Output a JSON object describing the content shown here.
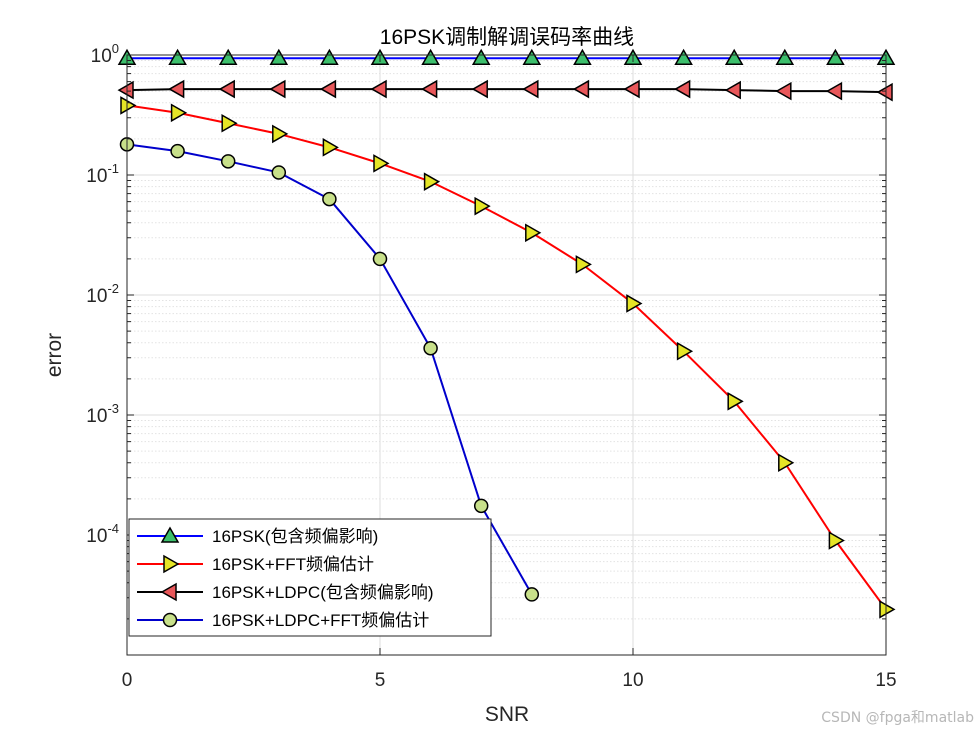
{
  "chart_data": {
    "type": "line",
    "title": "16PSK调制解调误码率曲线",
    "xlabel": "SNR",
    "ylabel": "error",
    "yscale": "log",
    "xlim": [
      0,
      15
    ],
    "ylim": [
      1e-05,
      1
    ],
    "xticks": [
      0,
      5,
      10,
      15
    ],
    "yticks": [
      {
        "value": 1,
        "base": "10",
        "exp": "0"
      },
      {
        "value": 0.1,
        "base": "10",
        "exp": "-1"
      },
      {
        "value": 0.01,
        "base": "10",
        "exp": "-2"
      },
      {
        "value": 0.001,
        "base": "10",
        "exp": "-3"
      },
      {
        "value": 0.0001,
        "base": "10",
        "exp": "-4"
      }
    ],
    "grid": true,
    "legend_position": "bottom-left",
    "series": [
      {
        "name": "16PSK(包含频偏影响)",
        "color": "#0000ff",
        "marker": "triangle-up",
        "marker_color": "#3cbf6c",
        "x": [
          0,
          1,
          2,
          3,
          4,
          5,
          6,
          7,
          8,
          9,
          10,
          11,
          12,
          13,
          14,
          15
        ],
        "values": [
          0.94,
          0.94,
          0.94,
          0.94,
          0.94,
          0.94,
          0.94,
          0.94,
          0.94,
          0.94,
          0.94,
          0.94,
          0.94,
          0.94,
          0.94,
          0.94
        ]
      },
      {
        "name": "16PSK+FFT频偏估计",
        "color": "#ff0000",
        "marker": "triangle-right",
        "marker_color": "#e5e526",
        "x": [
          0,
          1,
          2,
          3,
          4,
          5,
          6,
          7,
          8,
          9,
          10,
          11,
          12,
          13,
          14,
          15
        ],
        "values": [
          0.38,
          0.33,
          0.27,
          0.22,
          0.17,
          0.125,
          0.088,
          0.055,
          0.033,
          0.018,
          0.0085,
          0.0034,
          0.0013,
          0.0004,
          9e-05,
          2.4e-05
        ]
      },
      {
        "name": "16PSK+LDPC(包含频偏影响)",
        "color": "#000000",
        "marker": "triangle-left",
        "marker_color": "#e8575a",
        "x": [
          0,
          1,
          2,
          3,
          4,
          5,
          6,
          7,
          8,
          9,
          10,
          11,
          12,
          13,
          14,
          15
        ],
        "values": [
          0.51,
          0.52,
          0.52,
          0.52,
          0.52,
          0.52,
          0.52,
          0.52,
          0.52,
          0.52,
          0.52,
          0.52,
          0.51,
          0.5,
          0.5,
          0.49
        ]
      },
      {
        "name": "16PSK+LDPC+FFT频偏估计",
        "color": "#0000cc",
        "marker": "circle",
        "marker_color": "#c8e08a",
        "x": [
          0,
          1,
          2,
          3,
          4,
          5,
          6,
          7,
          8
        ],
        "values": [
          0.18,
          0.158,
          0.13,
          0.105,
          0.063,
          0.02,
          0.0036,
          0.000175,
          3.2e-05
        ]
      }
    ]
  },
  "watermark": "CSDN @fpga和matlab"
}
